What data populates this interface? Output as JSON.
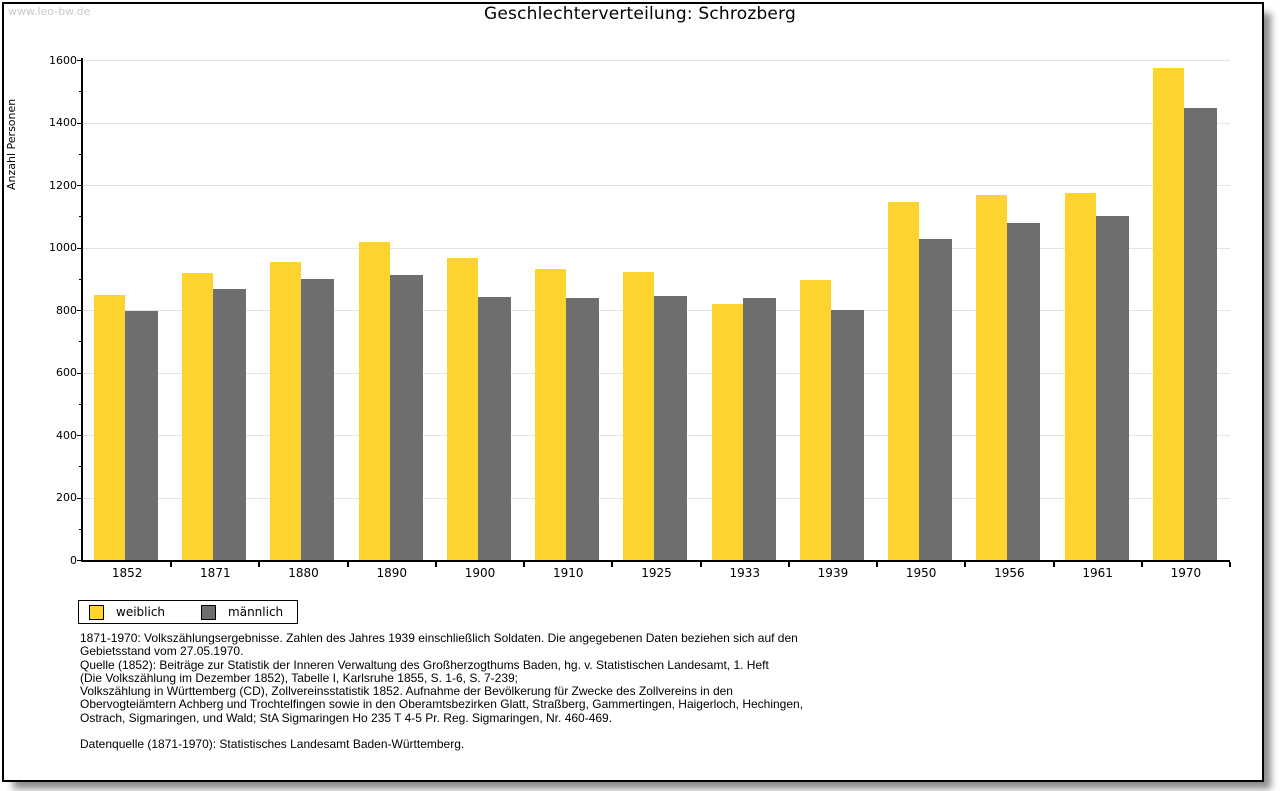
{
  "watermark": "www.leo-bw.de",
  "title": "Geschlechterverteilung: Schrozberg",
  "colors": {
    "weiblich": "#FCD42D",
    "maennlich": "#6E6E6E",
    "grid": "#E4E4E4",
    "axis": "#000000",
    "watermark": "#C9C9C9"
  },
  "chart_data": {
    "type": "bar",
    "title": "Geschlechterverteilung: Schrozberg",
    "xlabel": "",
    "ylabel": "Anzahl Personen",
    "ylim": [
      0,
      1600
    ],
    "ytick_step": 200,
    "yminor_step": 100,
    "grid": true,
    "legend_position": "bottom-left",
    "categories": [
      "1852",
      "1871",
      "1880",
      "1890",
      "1900",
      "1910",
      "1925",
      "1933",
      "1939",
      "1950",
      "1956",
      "1961",
      "1970"
    ],
    "series": [
      {
        "name": "weiblich",
        "color": "#FCD42D",
        "values": [
          848,
          920,
          955,
          1019,
          967,
          930,
          923,
          818,
          897,
          1146,
          1167,
          1173,
          1575
        ]
      },
      {
        "name": "männlich",
        "color": "#6E6E6E",
        "values": [
          798,
          868,
          900,
          912,
          841,
          838,
          844,
          837,
          800,
          1026,
          1077,
          1101,
          1448
        ]
      }
    ]
  },
  "legend": {
    "items": [
      {
        "label": "weiblich",
        "color": "#FCD42D"
      },
      {
        "label": "männlich",
        "color": "#6E6E6E"
      }
    ]
  },
  "footer": {
    "lines": [
      "1871-1970: Volkszählungsergebnisse. Zahlen des Jahres 1939 einschließlich Soldaten. Die angegebenen Daten beziehen sich auf den",
      "Gebietsstand vom 27.05.1970.",
      "Quelle (1852): Beiträge zur Statistik der Inneren Verwaltung des Großherzogthums Baden, hg. v. Statistischen Landesamt, 1. Heft",
      "(Die Volkszählung im Dezember 1852), Tabelle I, Karlsruhe 1855, S. 1-6, S. 7-239;",
      "Volkszählung in Württemberg (CD), Zollvereinsstatistik 1852. Aufnahme der Bevölkerung für Zwecke des Zollvereins in den",
      "Obervogteiämtern Achberg und Trochtelfingen sowie in den Oberamtsbezirken Glatt, Straßberg, Gammertingen, Haigerloch, Hechingen,",
      "Ostrach, Sigmaringen, und Wald; StA Sigmaringen Ho 235 T 4-5 Pr. Reg. Sigmaringen, Nr. 460-469.",
      "",
      "Datenquelle (1871-1970): Statistisches Landesamt Baden-Württemberg."
    ]
  }
}
